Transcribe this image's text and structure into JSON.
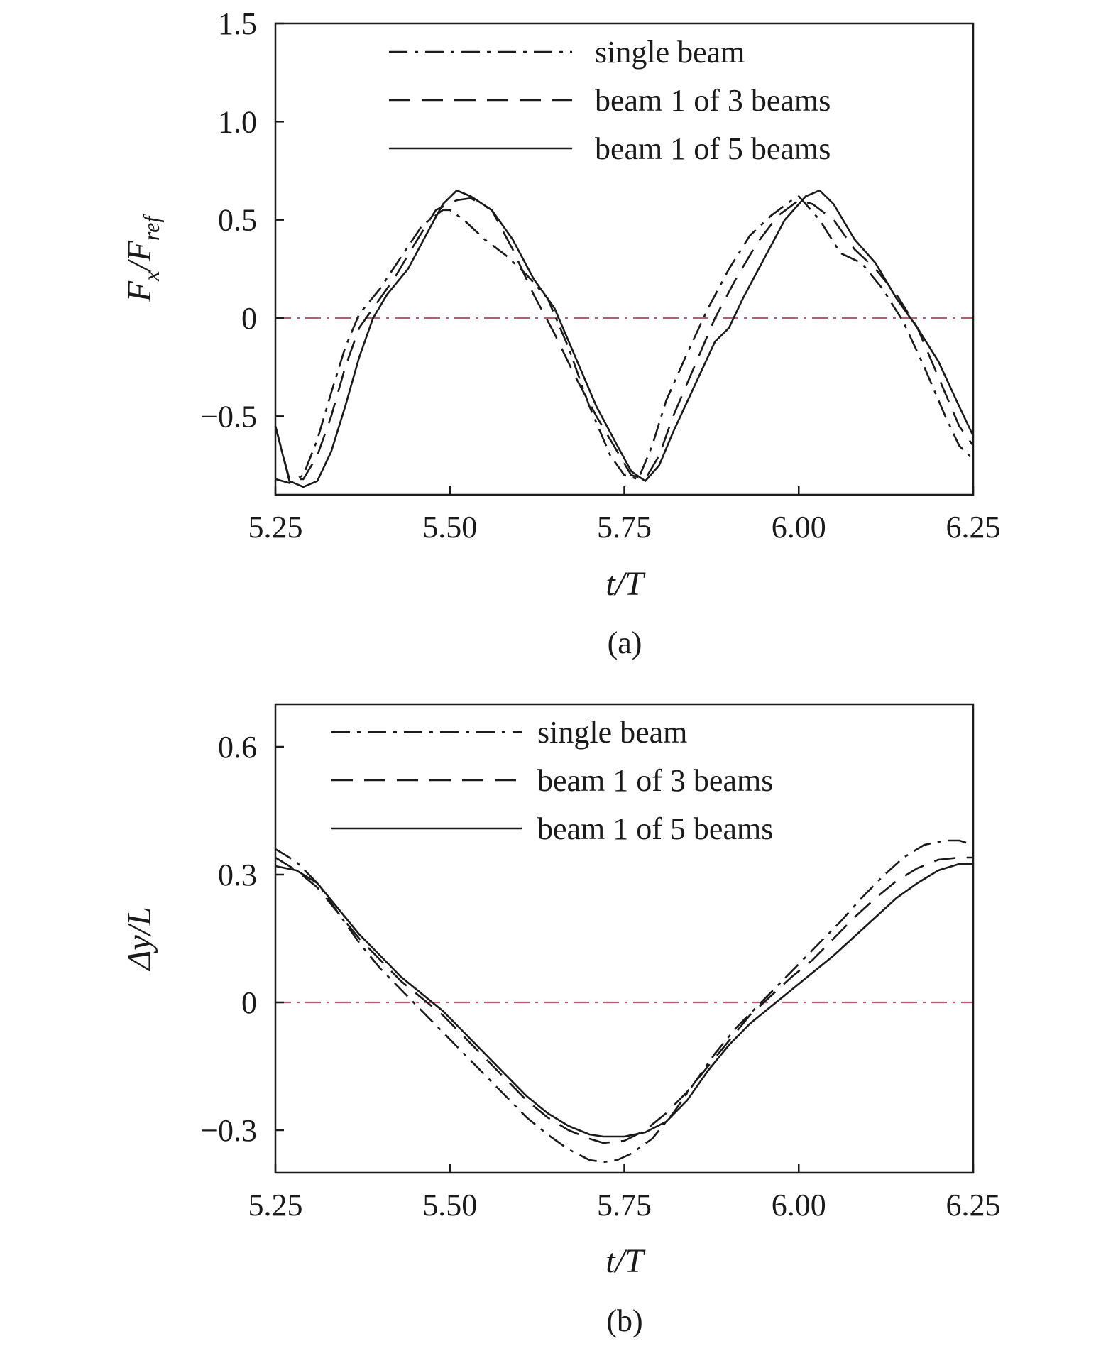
{
  "chart_data": [
    {
      "type": "line",
      "panel_label": "(a)",
      "xlabel": "t/T",
      "ylabel_html": "F<tspan dy=\"12\" font-size=\"32\">x</tspan><tspan dy=\"-12\">/F</tspan><tspan dy=\"12\" font-size=\"32\">ref</tspan>",
      "ylabel": "Fx/Fref",
      "xlim": [
        5.25,
        6.25
      ],
      "ylim": [
        -0.9,
        1.5
      ],
      "xticks": [
        "5.25",
        "5.50",
        "5.75",
        "6.00",
        "6.25"
      ],
      "xtick_values": [
        5.25,
        5.5,
        5.75,
        6.0,
        6.25
      ],
      "yticks": [
        "1.5",
        "1.0",
        "0.5",
        "0",
        "−0.5"
      ],
      "ytick_values": [
        1.5,
        1.0,
        0.5,
        0,
        -0.5
      ],
      "zero_line_color": "#b06070",
      "legend_position": "top-center",
      "series": [
        {
          "name": "single beam",
          "style": "dashdot",
          "x": [
            5.25,
            5.27,
            5.29,
            5.31,
            5.33,
            5.35,
            5.37,
            5.4,
            5.43,
            5.46,
            5.49,
            5.5,
            5.52,
            5.55,
            5.58,
            5.61,
            5.64,
            5.67,
            5.7,
            5.73,
            5.75,
            5.77,
            5.79,
            5.81,
            5.84,
            5.87,
            5.9,
            5.93,
            5.96,
            5.99,
            6.0,
            6.03,
            6.06,
            6.09,
            6.12,
            6.15,
            6.18,
            6.21,
            6.23,
            6.25
          ],
          "y": [
            -0.82,
            -0.84,
            -0.8,
            -0.62,
            -0.38,
            -0.15,
            0.02,
            0.15,
            0.31,
            0.47,
            0.55,
            0.55,
            0.5,
            0.4,
            0.32,
            0.22,
            0.1,
            -0.15,
            -0.45,
            -0.7,
            -0.8,
            -0.82,
            -0.65,
            -0.42,
            -0.18,
            0.05,
            0.25,
            0.42,
            0.52,
            0.6,
            0.62,
            0.5,
            0.33,
            0.28,
            0.15,
            -0.02,
            -0.25,
            -0.5,
            -0.65,
            -0.72
          ]
        },
        {
          "name": "beam 1 of 3 beams",
          "style": "dashed",
          "x": [
            5.25,
            5.27,
            5.29,
            5.31,
            5.33,
            5.35,
            5.37,
            5.39,
            5.42,
            5.45,
            5.48,
            5.51,
            5.53,
            5.56,
            5.59,
            5.62,
            5.65,
            5.68,
            5.71,
            5.74,
            5.76,
            5.78,
            5.8,
            5.82,
            5.85,
            5.88,
            5.91,
            5.94,
            5.97,
            6.0,
            6.02,
            6.05,
            6.08,
            6.11,
            6.14,
            6.17,
            6.2,
            6.23,
            6.25
          ],
          "y": [
            -0.55,
            -0.82,
            -0.82,
            -0.7,
            -0.5,
            -0.25,
            -0.05,
            0.05,
            0.2,
            0.38,
            0.55,
            0.6,
            0.61,
            0.55,
            0.35,
            0.12,
            -0.08,
            -0.3,
            -0.5,
            -0.68,
            -0.8,
            -0.82,
            -0.7,
            -0.5,
            -0.25,
            0.0,
            0.2,
            0.38,
            0.52,
            0.6,
            0.58,
            0.5,
            0.35,
            0.25,
            0.12,
            -0.05,
            -0.3,
            -0.55,
            -0.65
          ]
        },
        {
          "name": "beam 1 of 5 beams",
          "style": "solid",
          "x": [
            5.25,
            5.27,
            5.29,
            5.31,
            5.33,
            5.35,
            5.37,
            5.39,
            5.41,
            5.44,
            5.47,
            5.49,
            5.51,
            5.53,
            5.56,
            5.59,
            5.62,
            5.65,
            5.68,
            5.71,
            5.74,
            5.76,
            5.78,
            5.8,
            5.82,
            5.85,
            5.88,
            5.9,
            5.92,
            5.95,
            5.98,
            6.01,
            6.03,
            6.05,
            6.08,
            6.11,
            6.14,
            6.17,
            6.2,
            6.23,
            6.25
          ],
          "y": [
            -0.55,
            -0.83,
            -0.86,
            -0.83,
            -0.68,
            -0.45,
            -0.2,
            0.0,
            0.12,
            0.25,
            0.45,
            0.58,
            0.65,
            0.62,
            0.55,
            0.4,
            0.2,
            0.05,
            -0.2,
            -0.45,
            -0.65,
            -0.78,
            -0.83,
            -0.75,
            -0.58,
            -0.35,
            -0.12,
            -0.05,
            0.1,
            0.3,
            0.5,
            0.62,
            0.65,
            0.58,
            0.4,
            0.28,
            0.1,
            -0.05,
            -0.22,
            -0.45,
            -0.6
          ]
        }
      ]
    },
    {
      "type": "line",
      "panel_label": "(b)",
      "xlabel": "t/T",
      "ylabel_html": "Δy/L",
      "ylabel": "Δy/L",
      "xlim": [
        5.25,
        6.25
      ],
      "ylim": [
        -0.4,
        0.7
      ],
      "xticks": [
        "5.25",
        "5.50",
        "5.75",
        "6.00",
        "6.25"
      ],
      "xtick_values": [
        5.25,
        5.5,
        5.75,
        6.0,
        6.25
      ],
      "yticks": [
        "0.6",
        "0.3",
        "0",
        "−0.3"
      ],
      "ytick_values": [
        0.6,
        0.3,
        0,
        -0.3
      ],
      "zero_line_color": "#b06070",
      "legend_position": "top-center",
      "series": [
        {
          "name": "single beam",
          "style": "dashdot",
          "x": [
            5.25,
            5.28,
            5.31,
            5.34,
            5.37,
            5.4,
            5.43,
            5.46,
            5.49,
            5.52,
            5.55,
            5.58,
            5.61,
            5.64,
            5.67,
            5.7,
            5.72,
            5.74,
            5.76,
            5.79,
            5.82,
            5.85,
            5.88,
            5.91,
            5.94,
            5.97,
            6.0,
            6.03,
            6.06,
            6.09,
            6.12,
            6.15,
            6.18,
            6.21,
            6.23,
            6.25
          ],
          "y": [
            0.36,
            0.33,
            0.28,
            0.21,
            0.14,
            0.08,
            0.03,
            -0.02,
            -0.07,
            -0.12,
            -0.17,
            -0.22,
            -0.27,
            -0.31,
            -0.345,
            -0.37,
            -0.375,
            -0.37,
            -0.355,
            -0.32,
            -0.26,
            -0.19,
            -0.12,
            -0.06,
            -0.01,
            0.04,
            0.09,
            0.14,
            0.19,
            0.245,
            0.295,
            0.34,
            0.37,
            0.38,
            0.38,
            0.37
          ]
        },
        {
          "name": "beam 1 of 3 beams",
          "style": "dashed",
          "x": [
            5.25,
            5.28,
            5.31,
            5.34,
            5.37,
            5.4,
            5.43,
            5.46,
            5.49,
            5.52,
            5.55,
            5.58,
            5.61,
            5.64,
            5.67,
            5.7,
            5.72,
            5.75,
            5.78,
            5.81,
            5.84,
            5.87,
            5.9,
            5.93,
            5.96,
            5.99,
            6.02,
            6.05,
            6.08,
            6.11,
            6.14,
            6.17,
            6.2,
            6.23,
            6.25
          ],
          "y": [
            0.34,
            0.31,
            0.27,
            0.21,
            0.15,
            0.1,
            0.05,
            0.01,
            -0.03,
            -0.08,
            -0.13,
            -0.18,
            -0.23,
            -0.27,
            -0.3,
            -0.32,
            -0.33,
            -0.325,
            -0.3,
            -0.26,
            -0.21,
            -0.15,
            -0.09,
            -0.03,
            0.015,
            0.06,
            0.1,
            0.15,
            0.2,
            0.245,
            0.285,
            0.315,
            0.335,
            0.34,
            0.34
          ]
        },
        {
          "name": "beam 1 of 5 beams",
          "style": "solid",
          "x": [
            5.25,
            5.28,
            5.31,
            5.34,
            5.37,
            5.4,
            5.43,
            5.46,
            5.49,
            5.52,
            5.55,
            5.58,
            5.61,
            5.64,
            5.67,
            5.7,
            5.72,
            5.75,
            5.78,
            5.81,
            5.84,
            5.87,
            5.9,
            5.93,
            5.96,
            5.99,
            6.02,
            6.05,
            6.08,
            6.11,
            6.14,
            6.17,
            6.2,
            6.23,
            6.25
          ],
          "y": [
            0.32,
            0.31,
            0.28,
            0.22,
            0.16,
            0.11,
            0.06,
            0.02,
            -0.02,
            -0.07,
            -0.12,
            -0.17,
            -0.22,
            -0.26,
            -0.29,
            -0.31,
            -0.315,
            -0.315,
            -0.305,
            -0.28,
            -0.23,
            -0.16,
            -0.1,
            -0.05,
            -0.01,
            0.03,
            0.07,
            0.11,
            0.155,
            0.2,
            0.245,
            0.28,
            0.31,
            0.325,
            0.325
          ]
        }
      ]
    }
  ]
}
